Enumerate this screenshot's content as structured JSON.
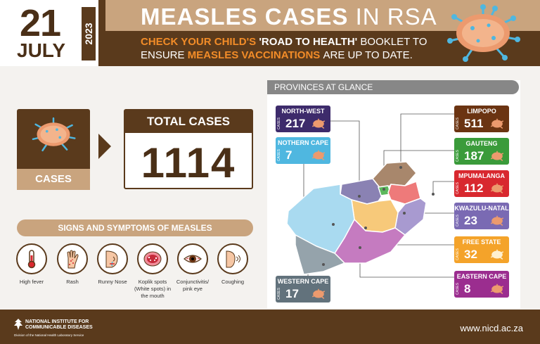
{
  "header": {
    "day": "21",
    "month": "JULY",
    "year": "2023",
    "title_bold": "MEASLES CASES",
    "title_thin": "IN RSA",
    "subtitle_a": "CHECK YOUR CHILD'S",
    "subtitle_b": "'ROAD TO HEALTH'",
    "subtitle_c": "BOOKLET TO",
    "subtitle_d": "ENSURE",
    "subtitle_e": "MEASLES VACCINATIONS",
    "subtitle_f": "ARE UP TO DATE."
  },
  "cases": {
    "label": "CASES"
  },
  "total": {
    "label": "TOTAL CASES",
    "value": "1114"
  },
  "signs": {
    "title": "SIGNS AND SYMPTOMS OF MEASLES",
    "items": [
      {
        "icon": "thermometer-icon",
        "label": "High fever"
      },
      {
        "icon": "hand-rash-icon",
        "label": "Rash"
      },
      {
        "icon": "runny-nose-icon",
        "label": "Runny Nose"
      },
      {
        "icon": "open-mouth-icon",
        "label": "Koplik spots (White spots) in the mouth"
      },
      {
        "icon": "eye-icon",
        "label": "Conjunctivitis/ pink eye"
      },
      {
        "icon": "cough-icon",
        "label": "Coughing"
      }
    ]
  },
  "provinces": {
    "title": "PROVINCES AT GLANCE",
    "cases_tag": "CASES",
    "list": [
      {
        "name": "NORTH-WEST",
        "value": "217",
        "color": "#3d2b6b"
      },
      {
        "name": "NOTHERN CAPE",
        "value": "7",
        "color": "#4fb7e0"
      },
      {
        "name": "WESTERN CAPE",
        "value": "17",
        "color": "#62727c"
      },
      {
        "name": "LIMPOPO",
        "value": "511",
        "color": "#6b3412"
      },
      {
        "name": "GAUTENG",
        "value": "187",
        "color": "#3a9b3a"
      },
      {
        "name": "MPUMALANGA",
        "value": "112",
        "color": "#d8282f"
      },
      {
        "name": "KWAZULU-NATAL",
        "value": "23",
        "color": "#7a6ab3"
      },
      {
        "name": "FREE STATE",
        "value": "32",
        "color": "#f4a32a"
      },
      {
        "name": "EASTERN CAPE",
        "value": "8",
        "color": "#9b2d8f"
      }
    ]
  },
  "footer": {
    "org_line1": "NATIONAL INSTITUTE FOR",
    "org_line2": "COMMUNICABLE DISEASES",
    "org_sub": "Division of the National Health Laboratory Service",
    "website": "www.nicd.ac.za"
  }
}
